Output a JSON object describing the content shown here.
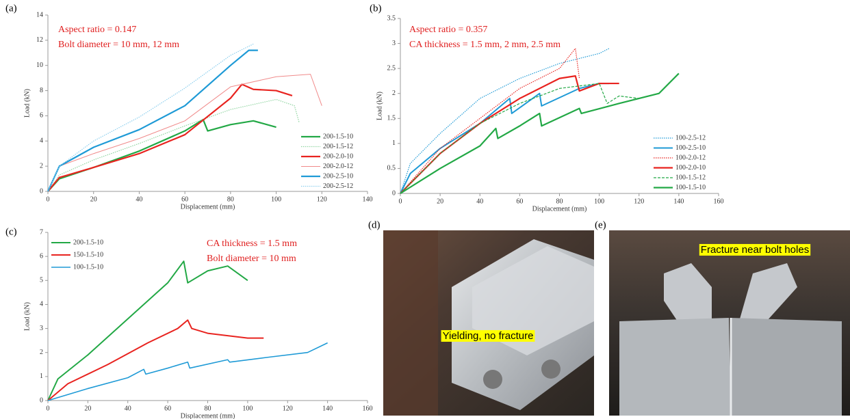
{
  "chart_data": [
    {
      "type": "line",
      "panel": "(a)",
      "xlabel": "Displacement (mm)",
      "ylabel": "Load (kN)",
      "annotations": [
        "Aspect ratio = 0.147",
        "Bolt diameter = 10 mm, 12 mm"
      ],
      "xlim": [
        0,
        140
      ],
      "xticks": [
        0,
        20,
        40,
        60,
        80,
        100,
        120,
        140
      ],
      "ylim": [
        0,
        14
      ],
      "yticks": [
        0,
        2,
        4,
        6,
        8,
        10,
        12,
        14
      ],
      "legend": "right",
      "series": [
        {
          "name": "200-1.5-10",
          "color": "#22a845",
          "style": "solid",
          "width": 2.2,
          "x": [
            0,
            5,
            20,
            40,
            60,
            68,
            70,
            80,
            90,
            100
          ],
          "values": [
            0,
            1.0,
            1.9,
            3.2,
            4.8,
            5.7,
            4.8,
            5.3,
            5.6,
            5.1
          ]
        },
        {
          "name": "200-1.5-12",
          "color": "#8fd4a0",
          "style": "dotted",
          "width": 1.2,
          "x": [
            0,
            5,
            20,
            40,
            60,
            80,
            100,
            108,
            110
          ],
          "values": [
            0,
            1.3,
            2.5,
            3.8,
            5.2,
            6.5,
            7.3,
            6.8,
            5.5
          ]
        },
        {
          "name": "200-2.0-10",
          "color": "#e8231f",
          "style": "solid",
          "width": 2.2,
          "x": [
            0,
            5,
            20,
            40,
            60,
            80,
            85,
            90,
            100,
            107
          ],
          "values": [
            0,
            1.1,
            1.9,
            3.0,
            4.5,
            7.4,
            8.5,
            8.1,
            8.0,
            7.6
          ]
        },
        {
          "name": "200-2.0-12",
          "color": "#f08a8a",
          "style": "solid",
          "width": 1,
          "x": [
            0,
            5,
            20,
            40,
            60,
            80,
            100,
            115,
            120
          ],
          "values": [
            0,
            2.0,
            3.0,
            4.2,
            5.6,
            8.3,
            9.1,
            9.3,
            6.8
          ]
        },
        {
          "name": "200-2.5-10",
          "color": "#1e9ad6",
          "style": "solid",
          "width": 2.2,
          "x": [
            0,
            5,
            20,
            40,
            60,
            80,
            88,
            92
          ],
          "values": [
            0,
            2.0,
            3.5,
            4.9,
            6.8,
            10.0,
            11.2,
            11.2
          ]
        },
        {
          "name": "200-2.5-12",
          "color": "#8ccfee",
          "style": "dotted",
          "width": 1.2,
          "x": [
            0,
            5,
            20,
            40,
            60,
            80,
            90
          ],
          "values": [
            0,
            2.0,
            4.0,
            5.9,
            8.2,
            10.8,
            11.7
          ]
        }
      ]
    },
    {
      "type": "line",
      "panel": "(b)",
      "xlabel": "Displacement (mm)",
      "ylabel": "Load (kN)",
      "annotations": [
        "Aspect ratio = 0.357",
        "CA thickness = 1.5 mm, 2 mm, 2.5 mm"
      ],
      "xlim": [
        0,
        160
      ],
      "xticks": [
        0,
        20,
        40,
        60,
        80,
        100,
        120,
        140,
        160
      ],
      "ylim": [
        0,
        3.5
      ],
      "yticks": [
        0,
        0.5,
        1,
        1.5,
        2,
        2.5,
        3,
        3.5
      ],
      "legend": "right",
      "series": [
        {
          "name": "100-2.5-12",
          "color": "#1e9ad6",
          "style": "dotted",
          "width": 1.2,
          "x": [
            0,
            5,
            20,
            40,
            60,
            80,
            100,
            105
          ],
          "values": [
            0,
            0.6,
            1.2,
            1.9,
            2.3,
            2.6,
            2.8,
            2.9
          ]
        },
        {
          "name": "100-2.5-10",
          "color": "#1e9ad6",
          "style": "solid",
          "width": 2,
          "x": [
            0,
            5,
            20,
            40,
            55,
            56,
            70,
            71,
            90,
            100,
            105
          ],
          "values": [
            0,
            0.4,
            0.9,
            1.4,
            1.9,
            1.6,
            2.0,
            1.75,
            2.1,
            2.2,
            2.2
          ]
        },
        {
          "name": "100-2.0-12",
          "color": "#e8231f",
          "style": "dotted",
          "width": 1.2,
          "x": [
            0,
            20,
            40,
            60,
            80,
            88,
            90
          ],
          "values": [
            0,
            0.9,
            1.5,
            2.1,
            2.5,
            2.9,
            2.3
          ]
        },
        {
          "name": "100-2.0-10",
          "color": "#e8231f",
          "style": "solid",
          "width": 2.2,
          "x": [
            0,
            20,
            40,
            60,
            80,
            88,
            90,
            100,
            110
          ],
          "values": [
            0,
            0.8,
            1.4,
            1.9,
            2.3,
            2.35,
            2.05,
            2.2,
            2.2
          ]
        },
        {
          "name": "100-1.5-12",
          "color": "#22a845",
          "style": "dashed",
          "width": 1.2,
          "x": [
            0,
            20,
            40,
            60,
            80,
            100,
            104,
            110,
            120
          ],
          "values": [
            0,
            0.8,
            1.4,
            1.8,
            2.1,
            2.2,
            1.8,
            1.95,
            1.9
          ]
        },
        {
          "name": "100-1.5-10",
          "color": "#22a845",
          "style": "solid",
          "width": 2.2,
          "x": [
            0,
            10,
            20,
            40,
            48,
            49,
            60,
            70,
            71,
            90,
            91,
            110,
            130,
            140
          ],
          "values": [
            0,
            0.25,
            0.5,
            0.95,
            1.3,
            1.1,
            1.35,
            1.6,
            1.35,
            1.7,
            1.6,
            1.8,
            2.0,
            2.4
          ]
        }
      ]
    },
    {
      "type": "line",
      "panel": "(c)",
      "xlabel": "Displacement (mm)",
      "ylabel": "Load (kN)",
      "annotations": [
        "CA thickness = 1.5 mm",
        "Bolt diameter = 10 mm"
      ],
      "xlim": [
        0,
        160
      ],
      "xticks": [
        0,
        20,
        40,
        60,
        80,
        100,
        120,
        140,
        160
      ],
      "ylim": [
        0,
        7
      ],
      "yticks": [
        0,
        1,
        2,
        3,
        4,
        5,
        6,
        7
      ],
      "legend": "top-left",
      "series": [
        {
          "name": "200-1.5-10",
          "color": "#22a845",
          "style": "solid",
          "width": 2,
          "x": [
            0,
            5,
            20,
            40,
            60,
            68,
            70,
            80,
            90,
            100
          ],
          "values": [
            0,
            0.9,
            1.9,
            3.4,
            4.9,
            5.8,
            4.9,
            5.4,
            5.6,
            5.0
          ]
        },
        {
          "name": "150-1.5-10",
          "color": "#e8231f",
          "style": "solid",
          "width": 2,
          "x": [
            0,
            10,
            30,
            50,
            65,
            70,
            72,
            80,
            90,
            100,
            108
          ],
          "values": [
            0,
            0.7,
            1.5,
            2.4,
            3.0,
            3.35,
            3.0,
            2.8,
            2.7,
            2.6,
            2.6
          ]
        },
        {
          "name": "100-1.5-10",
          "color": "#1e9ad6",
          "style": "solid",
          "width": 1.6,
          "x": [
            0,
            10,
            20,
            40,
            48,
            49,
            60,
            70,
            71,
            90,
            91,
            110,
            130,
            140
          ],
          "values": [
            0,
            0.25,
            0.5,
            0.95,
            1.3,
            1.1,
            1.35,
            1.6,
            1.35,
            1.7,
            1.6,
            1.8,
            2.0,
            2.4
          ]
        }
      ]
    }
  ],
  "photos": [
    {
      "panel": "(d)",
      "caption": "Yielding, no fracture"
    },
    {
      "panel": "(e)",
      "caption": "Fracture near bolt holes"
    }
  ]
}
